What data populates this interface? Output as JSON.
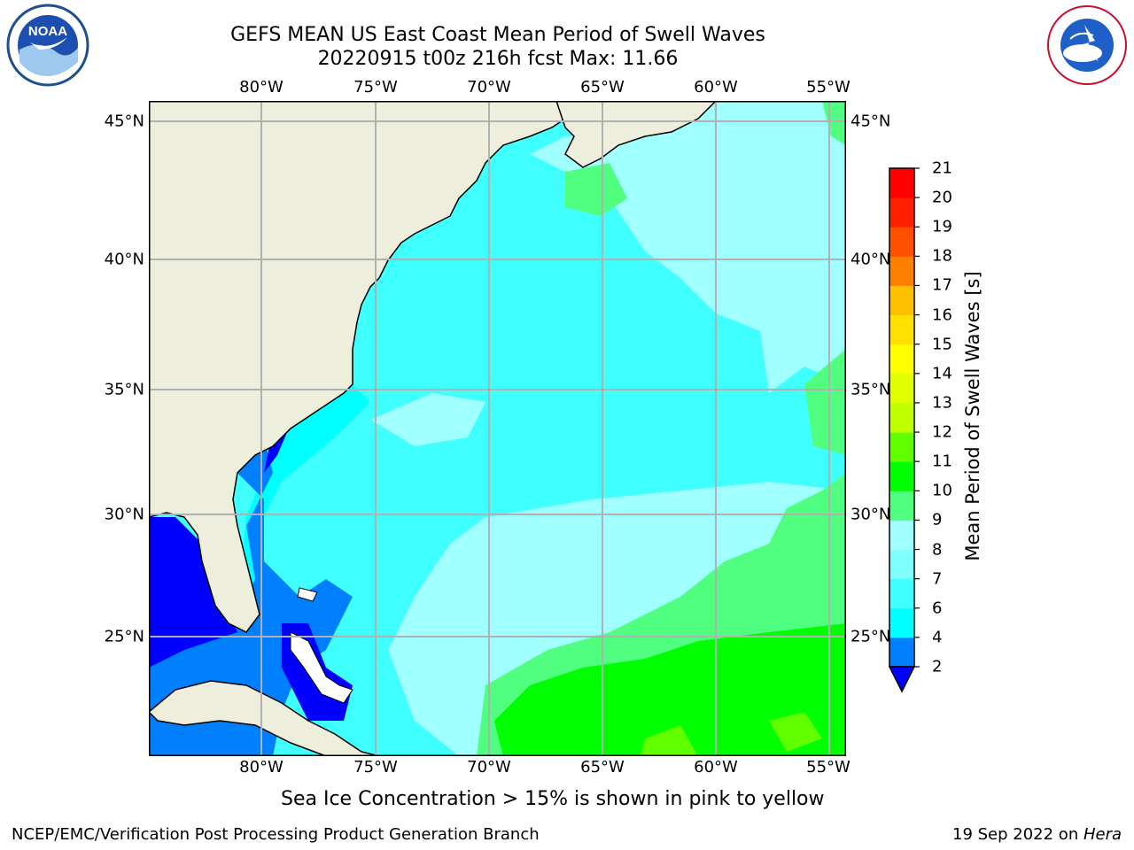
{
  "header": {
    "title_line1": "GEFS MEAN US East Coast Mean Period of Swell Waves",
    "title_line2": "20220915 t00z 216h fcst   Max: 11.66"
  },
  "logos": {
    "left": "noaa-logo",
    "right": "national-weather-service-logo"
  },
  "map": {
    "lon_labels": [
      "80°W",
      "75°W",
      "70°W",
      "65°W",
      "60°W",
      "55°W"
    ],
    "lat_labels": [
      "45°N",
      "40°N",
      "35°N",
      "30°N",
      "25°N"
    ],
    "colors": {
      "land": "#eeeedd",
      "grid": "#b0b0b0"
    }
  },
  "colorbar": {
    "title": "Mean Period of Swell Waves [s]",
    "ticks": [
      "2",
      "4",
      "6",
      "7",
      "8",
      "9",
      "10",
      "11",
      "12",
      "13",
      "14",
      "15",
      "16",
      "17",
      "18",
      "19",
      "20",
      "21"
    ],
    "colors": [
      "#0000ff",
      "#0080ff",
      "#00ffff",
      "#40ffff",
      "#80ffff",
      "#a0ffff",
      "#50ff80",
      "#00ff00",
      "#60ff00",
      "#c0ff00",
      "#e0ff00",
      "#ffff00",
      "#ffe000",
      "#ffc000",
      "#ff8000",
      "#ff5000",
      "#ff2000",
      "#ff0000"
    ],
    "extend": "min"
  },
  "caption": "Sea Ice Concentration > 15% is shown in pink to yellow",
  "footer": {
    "left": "NCEP/EMC/Verification Post Processing Product Generation Branch",
    "date": "19 Sep 2022 on ",
    "machine": "Hera"
  }
}
